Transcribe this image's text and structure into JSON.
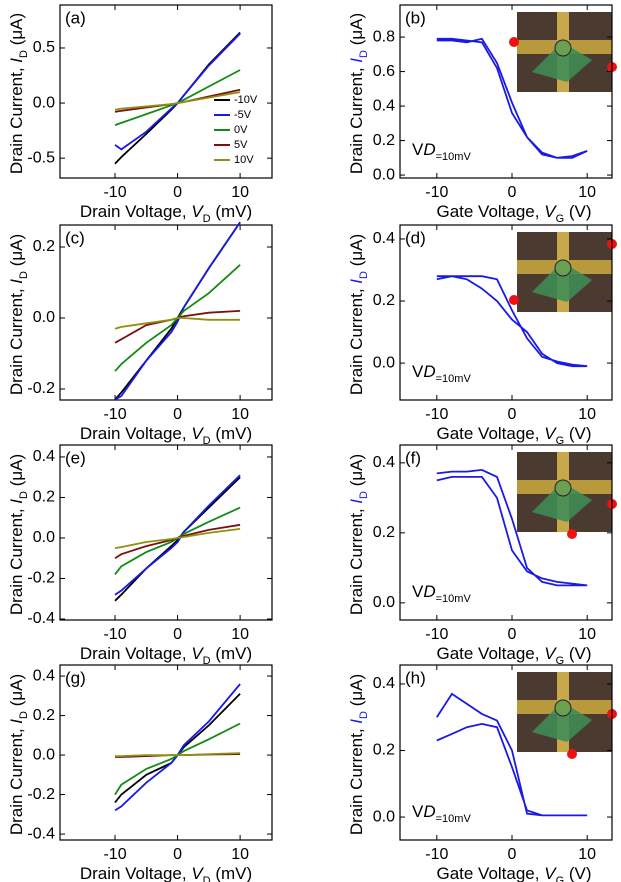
{
  "chart_data": [
    {
      "type": "line",
      "panel_label": "(a)",
      "xlabel": [
        "Drain Voltage, ",
        "V",
        "D",
        "  (mV)"
      ],
      "ylabel": [
        "Drain Current, ",
        "I",
        "D",
        " (μA)"
      ],
      "xlim": [
        -18.8,
        15.1
      ],
      "ylim": [
        -0.68,
        0.89
      ],
      "xticks": [
        -10,
        0,
        10
      ],
      "yticks": [
        -0.5,
        {
          "value": 0,
          "label": "0.0"
        },
        0.5
      ],
      "x": [
        -10,
        -9,
        -5,
        -1,
        0,
        1,
        5,
        10
      ],
      "legend": "lower right",
      "series": [
        {
          "name": "-10V",
          "color": "#000000",
          "values": [
            -0.55,
            -0.49,
            -0.28,
            -0.06,
            0.0,
            0.07,
            0.35,
            0.64
          ]
        },
        {
          "name": "-5V",
          "color": "#1a1ae6",
          "values": [
            -0.38,
            -0.42,
            -0.26,
            -0.05,
            0.0,
            0.07,
            0.34,
            0.63
          ]
        },
        {
          "name": "0V",
          "color": "#138a13",
          "values": [
            -0.2,
            -0.18,
            -0.1,
            -0.02,
            0.0,
            0.03,
            0.15,
            0.3
          ]
        },
        {
          "name": "5V",
          "color": "#7a1212",
          "values": [
            -0.08,
            -0.07,
            -0.04,
            -0.01,
            0.0,
            0.01,
            0.06,
            0.12
          ]
        },
        {
          "name": "10V",
          "color": "#8f8f12",
          "values": [
            -0.06,
            -0.05,
            -0.03,
            -0.01,
            0.0,
            0.01,
            0.05,
            0.1
          ]
        }
      ]
    },
    {
      "type": "loop",
      "panel_label": "(b)",
      "xlabel": [
        "Gate Voltage, ",
        "V",
        "G",
        "  (V)"
      ],
      "ylabel": [
        "Drain Current, ",
        "I",
        "D",
        " (μA)"
      ],
      "annotation": [
        "V",
        "D",
        "=10mV"
      ],
      "xlim": [
        -14.9,
        13.3
      ],
      "ylim": [
        -0.017,
        0.986
      ],
      "xticks": [
        -10,
        0,
        10
      ],
      "yticks": [
        {
          "value": 0,
          "label": "0.0"
        },
        0.2,
        0.4,
        0.6,
        0.8
      ],
      "x": [
        -10,
        -8,
        -6,
        -4,
        -2,
        0,
        2,
        4,
        6,
        8,
        10,
        8,
        6,
        4,
        2,
        0,
        -2,
        -4,
        -6,
        -8,
        -10
      ],
      "series": [
        {
          "color": "#1a1ae6",
          "values": [
            0.79,
            0.79,
            0.78,
            0.77,
            0.62,
            0.36,
            0.22,
            0.13,
            0.1,
            0.1,
            0.14,
            0.11,
            0.1,
            0.12,
            0.22,
            0.42,
            0.65,
            0.79,
            0.77,
            0.78,
            0.78
          ]
        }
      ]
    },
    {
      "type": "line",
      "panel_label": "(c)",
      "xlabel": [
        "Drain Voltage, ",
        "V",
        "D",
        "  (mV)"
      ],
      "ylabel": [
        "Drain Current, ",
        "I",
        "D",
        " (μA)"
      ],
      "xlim": [
        -18.8,
        15.1
      ],
      "ylim": [
        -0.231,
        0.262
      ],
      "xticks": [
        -10,
        0,
        10
      ],
      "yticks": [
        -0.2,
        {
          "value": 0,
          "label": "0.0"
        },
        0.2
      ],
      "x": [
        -10,
        -9,
        -5,
        -1,
        0,
        1,
        5,
        10
      ],
      "series": [
        {
          "color": "#000000",
          "values": [
            -0.23,
            -0.21,
            -0.12,
            -0.03,
            0.0,
            0.03,
            0.14,
            0.27
          ]
        },
        {
          "color": "#1a1ae6",
          "values": [
            -0.23,
            -0.22,
            -0.12,
            -0.04,
            -0.01,
            0.03,
            0.14,
            0.27
          ]
        },
        {
          "color": "#138a13",
          "values": [
            -0.15,
            -0.13,
            -0.07,
            -0.02,
            0.0,
            0.02,
            0.07,
            0.15
          ]
        },
        {
          "color": "#7a1212",
          "values": [
            -0.07,
            -0.06,
            -0.02,
            -0.005,
            0.0,
            0.005,
            0.015,
            0.02
          ]
        },
        {
          "color": "#8f8f12",
          "values": [
            -0.03,
            -0.025,
            -0.015,
            -0.005,
            0.0,
            0.0,
            -0.005,
            -0.005
          ]
        }
      ]
    },
    {
      "type": "loop",
      "panel_label": "(d)",
      "xlabel": [
        "Gate Voltage, ",
        "V",
        "G",
        "  (V)"
      ],
      "ylabel": [
        "Drain Current, ",
        "I",
        "D",
        " (μA)"
      ],
      "annotation": [
        "V",
        "D",
        "=10mV"
      ],
      "xlim": [
        -14.9,
        13.3
      ],
      "ylim": [
        -0.119,
        0.445
      ],
      "xticks": [
        -10,
        0,
        10
      ],
      "yticks": [
        {
          "value": 0,
          "label": "0.0"
        },
        0.2,
        0.4
      ],
      "x": [
        -10,
        -8,
        -6,
        -4,
        -2,
        0,
        2,
        4,
        6,
        8,
        10,
        8,
        6,
        4,
        2,
        0,
        -2,
        -4,
        -6,
        -8,
        -10
      ],
      "series": [
        {
          "color": "#1a1ae6",
          "values": [
            0.27,
            0.28,
            0.28,
            0.28,
            0.27,
            0.17,
            0.08,
            0.02,
            0.005,
            -0.005,
            -0.01,
            -0.01,
            0.0,
            0.03,
            0.1,
            0.14,
            0.2,
            0.24,
            0.27,
            0.28,
            0.28
          ]
        }
      ]
    },
    {
      "type": "line",
      "panel_label": "(e)",
      "xlabel": [
        "Drain Voltage, ",
        "V",
        "D",
        "  (mV)"
      ],
      "ylabel": [
        "Drain Current, ",
        "I",
        "D",
        " (μA)"
      ],
      "xlim": [
        -18.8,
        15.1
      ],
      "ylim": [
        -0.405,
        0.459
      ],
      "xticks": [
        -10,
        0,
        10
      ],
      "yticks": [
        -0.4,
        -0.2,
        {
          "value": 0,
          "label": "0.0"
        },
        0.2,
        0.4
      ],
      "x": [
        -10,
        -9,
        -5,
        -1,
        0,
        1,
        5,
        10
      ],
      "series": [
        {
          "color": "#000000",
          "values": [
            -0.31,
            -0.28,
            -0.15,
            -0.04,
            -0.01,
            0.03,
            0.15,
            0.3
          ]
        },
        {
          "color": "#1a1ae6",
          "values": [
            -0.28,
            -0.26,
            -0.15,
            -0.05,
            -0.02,
            0.03,
            0.16,
            0.31
          ]
        },
        {
          "color": "#138a13",
          "values": [
            -0.18,
            -0.14,
            -0.07,
            -0.02,
            0.0,
            0.02,
            0.08,
            0.15
          ]
        },
        {
          "color": "#7a1212",
          "values": [
            -0.1,
            -0.08,
            -0.04,
            -0.01,
            0.0,
            0.01,
            0.04,
            0.065
          ]
        },
        {
          "color": "#8f8f12",
          "values": [
            -0.05,
            -0.045,
            -0.02,
            -0.005,
            0.0,
            0.005,
            0.025,
            0.045
          ]
        }
      ]
    },
    {
      "type": "loop",
      "panel_label": "(f)",
      "xlabel": [
        "Gate Voltage, ",
        "V",
        "G",
        "  (V)"
      ],
      "ylabel": [
        "Drain Current, ",
        "I",
        "D",
        " (μA)"
      ],
      "annotation": [
        "V",
        "D",
        "=10mV"
      ],
      "xlim": [
        -14.9,
        13.3
      ],
      "ylim": [
        -0.049,
        0.451
      ],
      "xticks": [
        -10,
        0,
        10
      ],
      "yticks": [
        {
          "value": 0,
          "label": "0.0"
        },
        0.2,
        0.4
      ],
      "x": [
        -10,
        -8,
        -6,
        -4,
        -2,
        0,
        2,
        4,
        6,
        8,
        10,
        8,
        6,
        4,
        2,
        0,
        -2,
        -4,
        -6,
        -8,
        -10
      ],
      "series": [
        {
          "color": "#1a1ae6",
          "values": [
            0.35,
            0.36,
            0.36,
            0.36,
            0.3,
            0.15,
            0.09,
            0.07,
            0.06,
            0.055,
            0.05,
            0.05,
            0.05,
            0.06,
            0.1,
            0.24,
            0.36,
            0.38,
            0.375,
            0.375,
            0.37
          ]
        }
      ]
    },
    {
      "type": "line",
      "panel_label": "(g)",
      "xlabel": [
        "Drain Voltage, ",
        "V",
        "D",
        "  (mV)"
      ],
      "ylabel": [
        "Drain Current, ",
        "I",
        "D",
        " (μA)"
      ],
      "xlim": [
        -18.8,
        15.1
      ],
      "ylim": [
        -0.43,
        0.456
      ],
      "xticks": [
        -10,
        0,
        10
      ],
      "yticks": [
        -0.4,
        -0.2,
        {
          "value": 0,
          "label": "0.0"
        },
        0.2,
        0.4
      ],
      "x": [
        -10,
        -9,
        -5,
        -1,
        0,
        1,
        5,
        10
      ],
      "series": [
        {
          "color": "#000000",
          "values": [
            -0.24,
            -0.2,
            -0.1,
            -0.04,
            0.0,
            0.04,
            0.15,
            0.31
          ]
        },
        {
          "color": "#1a1ae6",
          "values": [
            -0.28,
            -0.26,
            -0.14,
            -0.04,
            0.0,
            0.05,
            0.17,
            0.36
          ]
        },
        {
          "color": "#138a13",
          "values": [
            -0.2,
            -0.15,
            -0.07,
            -0.02,
            0.0,
            0.02,
            0.08,
            0.16
          ]
        },
        {
          "color": "#7a1212",
          "values": [
            -0.01,
            -0.01,
            -0.005,
            0.0,
            0.0,
            0.0,
            0.003,
            0.005
          ]
        },
        {
          "color": "#8f8f12",
          "values": [
            -0.005,
            -0.005,
            0.0,
            0.0,
            0.0,
            0.0,
            0.005,
            0.01
          ]
        }
      ]
    },
    {
      "type": "loop",
      "panel_label": "(h)",
      "xlabel": [
        "Gate Voltage, ",
        "V",
        "G",
        "  (V)"
      ],
      "ylabel": [
        "Drain Current, ",
        "I",
        "D",
        " (μA)"
      ],
      "annotation": [
        "V",
        "D",
        "=10mV"
      ],
      "xlim": [
        -14.9,
        13.3
      ],
      "ylim": [
        -0.069,
        0.457
      ],
      "xticks": [
        -10,
        0,
        10
      ],
      "yticks": [
        {
          "value": 0,
          "label": "0.0"
        },
        0.2,
        0.4
      ],
      "x": [
        -10,
        -8,
        -6,
        -4,
        -2,
        0,
        2,
        4,
        6,
        8,
        10,
        8,
        6,
        4,
        2,
        0,
        -2,
        -4,
        -6,
        -8,
        -10
      ],
      "series": [
        {
          "color": "#1a1ae6",
          "values": [
            0.23,
            0.25,
            0.27,
            0.28,
            0.27,
            0.15,
            0.02,
            0.005,
            0.005,
            0.005,
            0.005,
            0.005,
            0.005,
            0.005,
            0.01,
            0.2,
            0.29,
            0.31,
            0.34,
            0.37,
            0.3
          ]
        }
      ]
    }
  ]
}
